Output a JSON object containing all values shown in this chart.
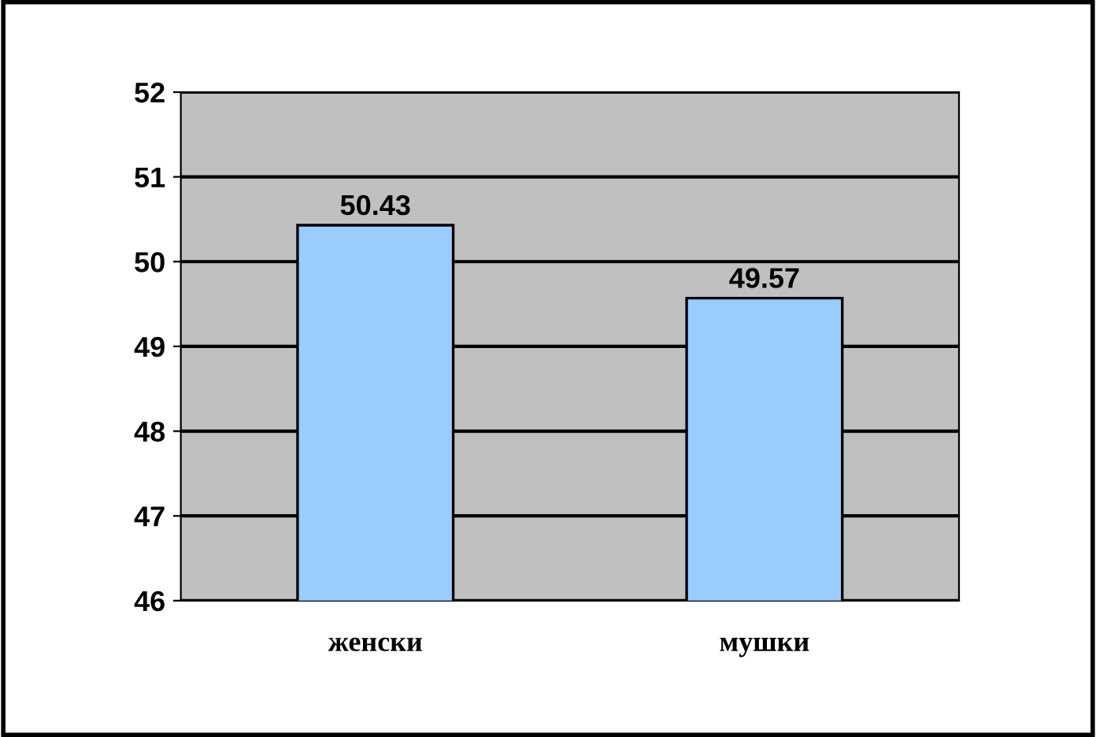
{
  "chart_data": {
    "type": "bar",
    "categories": [
      "женски",
      "мушки"
    ],
    "values": [
      50.43,
      49.57
    ],
    "color": "#99ccff",
    "ylim": [
      46,
      52
    ],
    "yticks": [
      46,
      47,
      48,
      49,
      50,
      51,
      52
    ],
    "grid": "y",
    "data_labels": true
  }
}
